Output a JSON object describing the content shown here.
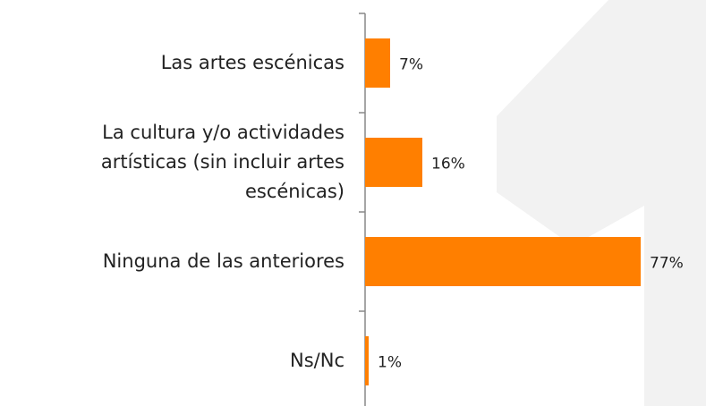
{
  "chart_data": {
    "type": "bar",
    "orientation": "horizontal",
    "categories": [
      "Las artes escénicas",
      "La cultura y/o actividades artísticas (sin incluir artes escénicas)",
      "Ninguna de las anteriores",
      "Ns/Nc"
    ],
    "values": [
      7,
      16,
      77,
      1
    ],
    "value_labels": [
      "7%",
      "16%",
      "77%",
      "1%"
    ],
    "color": "#ff7f00"
  }
}
